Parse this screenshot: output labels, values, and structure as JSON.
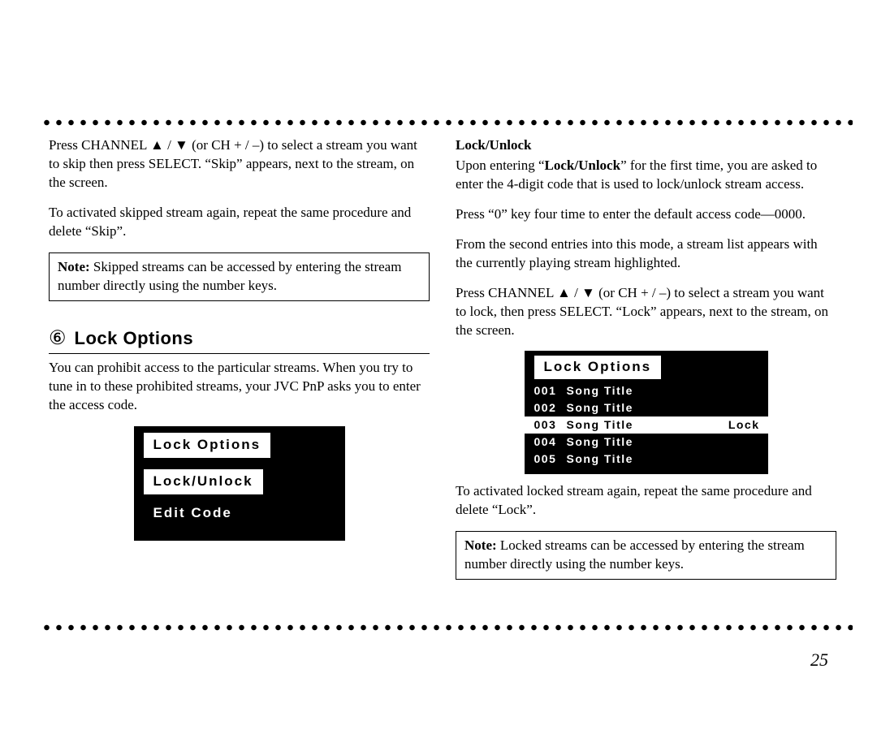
{
  "page_number": "25",
  "left": {
    "p1_a": "Press CHANNEL ",
    "p1_b": " (or CH + / –) to select a stream you want to skip then press SELECT. “Skip” appears, next to the stream, on the screen.",
    "p2": "To activated skipped stream again, repeat the same procedure and delete “Skip”.",
    "note_label": "Note:",
    "note_text": " Skipped streams can be accessed by entering the stream number directly using the number keys.",
    "section_num": "⑥",
    "section_title": "Lock Options",
    "p3": "You can prohibit access to the particular streams. When you try to tune in to these prohibited streams, your JVC PnP asks you to enter the access code.",
    "lcd": {
      "header": "Lock Options",
      "item1": "Lock/Unlock",
      "item2": "Edit Code"
    }
  },
  "right": {
    "sub_head": "Lock/Unlock",
    "p1_a": "Upon entering “",
    "p1_bold": "Lock/Unlock",
    "p1_b": "” for the first time,  you are asked to enter the 4-digit code that is used to lock/unlock stream access.",
    "p2": "Press “0” key four time to enter the default access code—0000.",
    "p3": "From the second entries into this mode, a stream list appears with the currently playing stream highlighted.",
    "p4_a": "Press CHANNEL ",
    "p4_b": " (or CH + / –) to select a stream you want to lock, then press SELECT. “Lock” appears, next to the stream, on the screen.",
    "lcd": {
      "header": "Lock Options",
      "rows": [
        {
          "num": "001",
          "title": "Song Title",
          "tag": ""
        },
        {
          "num": "002",
          "title": "Song Title",
          "tag": ""
        },
        {
          "num": "003",
          "title": "Song Title",
          "tag": "Lock",
          "hl": true
        },
        {
          "num": "004",
          "title": "Song Title",
          "tag": ""
        },
        {
          "num": "005",
          "title": "Song Title",
          "tag": ""
        }
      ]
    },
    "p5": "To activated locked stream again, repeat the same procedure and delete “Lock”.",
    "note_label": "Note:",
    "note_text": " Locked streams can be accessed by entering the stream number directly using the number keys."
  },
  "glyphs": {
    "up": "▲",
    "down": "▼",
    "slash": " / "
  }
}
